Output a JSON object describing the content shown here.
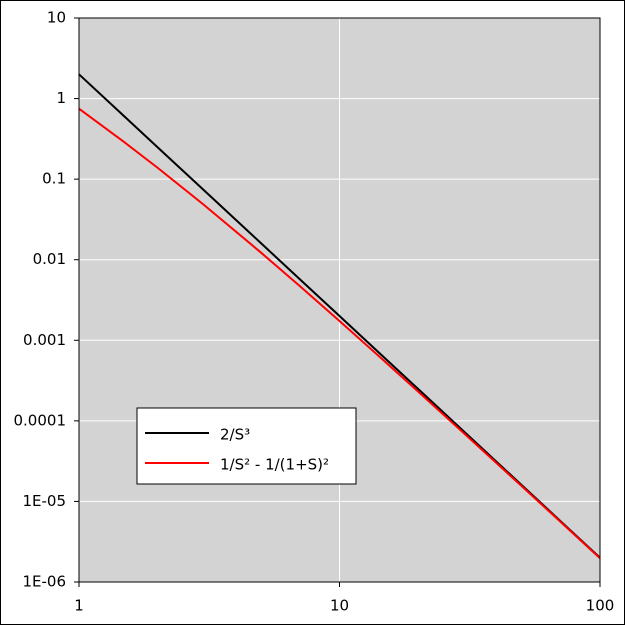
{
  "chart_data": {
    "type": "line",
    "xscale": "log",
    "yscale": "log",
    "grid": true,
    "legend": "lower left",
    "x": [
      1,
      1.5,
      2,
      3,
      5,
      7,
      10,
      15,
      20,
      30,
      50,
      70,
      100
    ],
    "series": [
      {
        "name": "2/S³",
        "color": "#000000",
        "values": [
          2,
          0.5926,
          0.25,
          0.07407,
          0.016,
          0.005831,
          0.002,
          0.0005926,
          0.00025,
          7.407e-05,
          1.6e-05,
          5.831e-06,
          2e-06
        ]
      },
      {
        "name": "1/S² - 1/(1+S)²",
        "color": "#ff0000",
        "values": [
          0.75,
          0.2844,
          0.1389,
          0.04861,
          0.01222,
          0.004783,
          0.001736,
          0.000538,
          0.000232,
          7.05e-05,
          1.553e-05,
          5.71e-06,
          1.97e-06
        ]
      }
    ],
    "xlim": [
      1,
      100
    ],
    "xticks": [
      1,
      10,
      100
    ],
    "ylim": [
      1e-06,
      10
    ],
    "yticks": [
      10,
      1,
      0.1,
      0.01,
      0.001,
      0.0001,
      {
        "value": 1e-05,
        "label": "1E-05"
      },
      {
        "value": 1e-06,
        "label": "1E-06"
      }
    ]
  }
}
